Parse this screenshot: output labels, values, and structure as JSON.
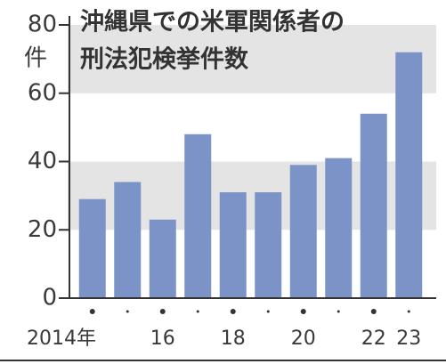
{
  "chart_data": {
    "type": "bar",
    "title_lines": [
      "沖縄県での米軍関係者の",
      "刑法犯検挙件数"
    ],
    "y_unit": "件",
    "categories": [
      "2014年",
      null,
      "16",
      null,
      "18",
      null,
      "20",
      null,
      "22",
      "23"
    ],
    "values": [
      29,
      34,
      23,
      48,
      31,
      31,
      39,
      41,
      54,
      72
    ],
    "color": "#7b93c7",
    "ylim": [
      0,
      80
    ],
    "yticks": [
      0,
      20,
      40,
      60,
      80
    ],
    "grid": true
  }
}
